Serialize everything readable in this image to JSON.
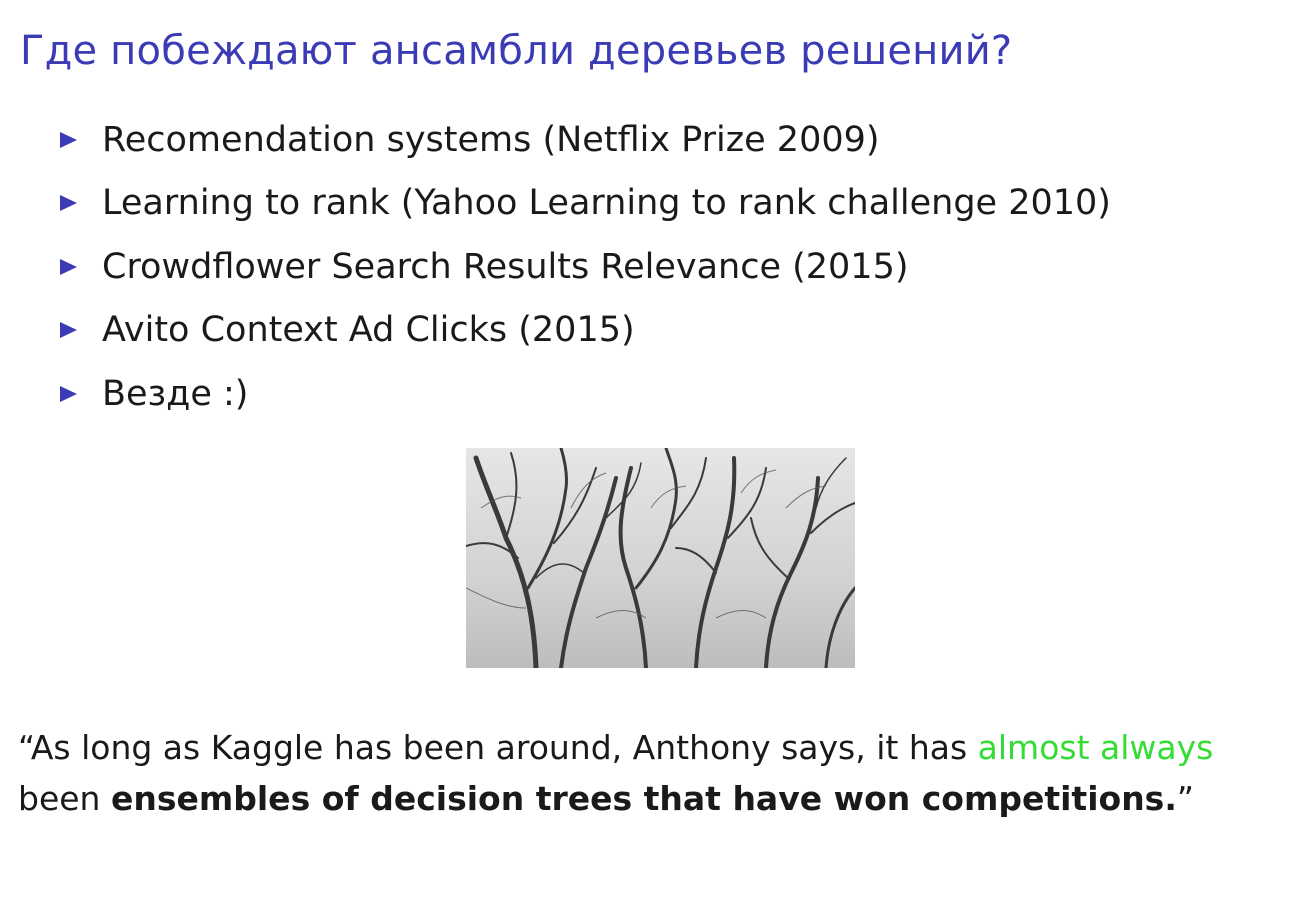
{
  "slide": {
    "title": "Где побеждают ансамбли деревьев решений?",
    "bullets": [
      "Recomendation systems (Netflix Prize 2009)",
      "Learning to rank (Yahoo Learning to rank challenge 2010)",
      "Crowdflower Search Results Relevance (2015)",
      "Avito Context Ad Clicks (2015)",
      "Везде :)"
    ],
    "quote": {
      "part1": "“As long as Kaggle has been around, Anthony says, it has ",
      "highlight": "almost always",
      "part2": "been ",
      "emphasis": "ensembles of decision trees that have won competitions.",
      "end": "”"
    }
  },
  "colors": {
    "title": "#3b3bb5",
    "bullet_marker": "#3b3bb5",
    "highlight": "#33dd33",
    "text": "#1a1a1a"
  },
  "icons": {
    "bullet": "triangle-right-icon"
  }
}
